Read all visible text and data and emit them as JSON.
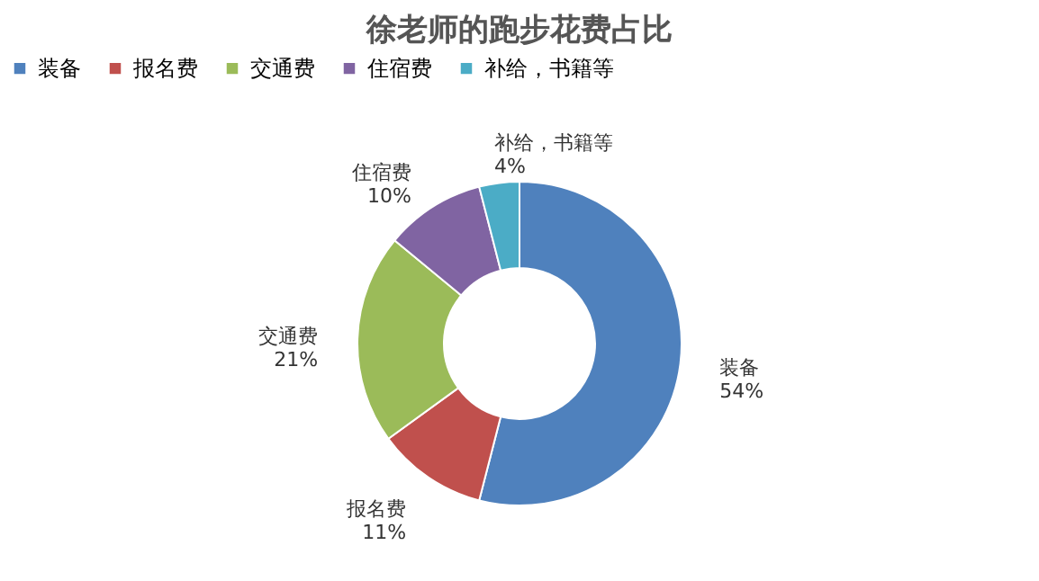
{
  "chart_data": {
    "type": "donut",
    "title": "徐老师的跑步花费占比",
    "categories": [
      "装备",
      "报名费",
      "交通费",
      "住宿费",
      "补给，书籍等"
    ],
    "values": [
      54,
      11,
      21,
      10,
      4
    ],
    "value_labels": [
      "54%",
      "11%",
      "21%",
      "10%",
      "4%"
    ],
    "colors": [
      "#4f81bd",
      "#c0504d",
      "#9bbb59",
      "#8064a2",
      "#4bacc6"
    ],
    "legend": "top"
  }
}
